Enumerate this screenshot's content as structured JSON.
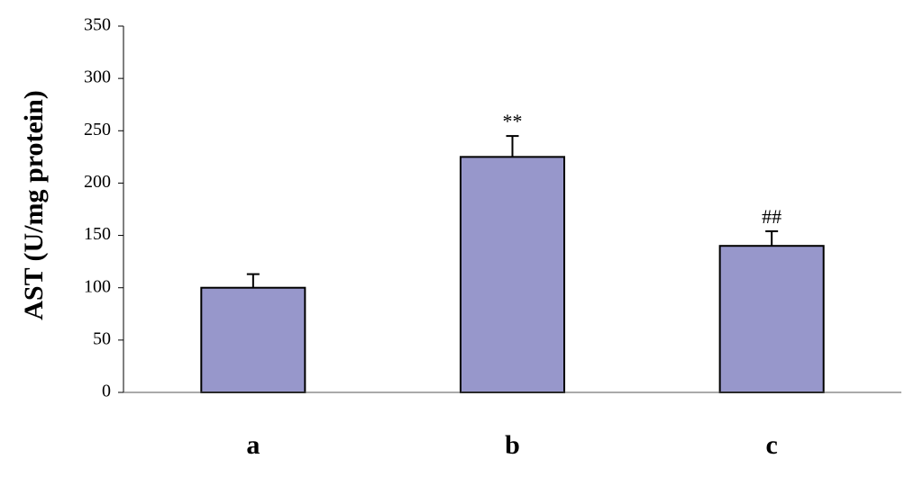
{
  "chart_data": {
    "type": "bar",
    "y_label": "AST (U/mg protein)",
    "categories": [
      "a",
      "b",
      "c"
    ],
    "values": [
      100,
      225,
      140
    ],
    "errors": [
      13,
      20,
      14
    ],
    "value_annotations": [
      null,
      "**",
      "##"
    ],
    "color": "#9797cb",
    "ylim": [
      0,
      350
    ],
    "yticks": [
      0,
      50,
      100,
      150,
      200,
      250,
      300,
      350
    ],
    "grid": false
  }
}
